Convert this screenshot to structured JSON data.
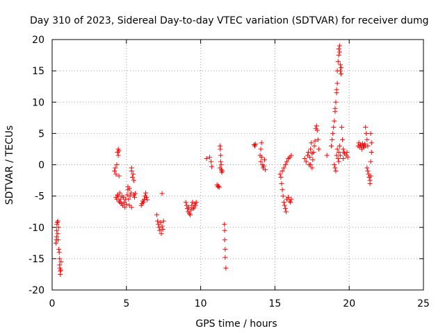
{
  "chart_data": {
    "type": "scatter",
    "title": "Day 310 of 2023, Sidereal Day-to-day VTEC variation (SDTVAR) for receiver dumg",
    "xlabel": "GPS time / hours",
    "ylabel": "SDTVAR / TECUs",
    "xlim": [
      0,
      25
    ],
    "ylim": [
      -20,
      20
    ],
    "xticks": [
      0,
      5,
      10,
      15,
      20,
      25
    ],
    "yticks": [
      -20,
      -15,
      -10,
      -5,
      0,
      5,
      10,
      15,
      20
    ],
    "xtick_labels": [
      "0",
      "5",
      "10",
      "15",
      "20",
      "25"
    ],
    "ytick_labels": [
      "-20",
      "-15",
      "-10",
      "-5",
      "0",
      "5",
      "10",
      "15",
      "20"
    ],
    "grid": true,
    "marker": "+",
    "marker_color": "#ff0000",
    "series": [
      {
        "name": "SDTVAR",
        "points": [
          [
            0.25,
            -12.5
          ],
          [
            0.28,
            -12.0
          ],
          [
            0.3,
            -11.5
          ],
          [
            0.3,
            -10.5
          ],
          [
            0.32,
            -9.5
          ],
          [
            0.35,
            -9.2
          ],
          [
            0.38,
            -9.0
          ],
          [
            0.38,
            -11.0
          ],
          [
            0.4,
            -12.0
          ],
          [
            0.42,
            -10.0
          ],
          [
            0.45,
            -13.5
          ],
          [
            0.48,
            -14.0
          ],
          [
            0.5,
            -15.0
          ],
          [
            0.5,
            -16.0
          ],
          [
            0.52,
            -16.5
          ],
          [
            0.55,
            -17.0
          ],
          [
            0.55,
            -17.5
          ],
          [
            0.58,
            -16.8
          ],
          [
            0.6,
            -15.5
          ],
          [
            4.2,
            -1.0
          ],
          [
            4.25,
            -0.5
          ],
          [
            4.3,
            -1.5
          ],
          [
            4.35,
            0.0
          ],
          [
            4.4,
            2.0
          ],
          [
            4.45,
            2.5
          ],
          [
            4.45,
            1.5
          ],
          [
            4.5,
            2.2
          ],
          [
            4.5,
            -1.8
          ],
          [
            4.55,
            -4.5
          ],
          [
            4.3,
            -5.2
          ],
          [
            4.35,
            -5.5
          ],
          [
            4.4,
            -4.8
          ],
          [
            4.45,
            -5.0
          ],
          [
            4.5,
            -5.8
          ],
          [
            4.55,
            -6.0
          ],
          [
            4.6,
            -5.5
          ],
          [
            4.65,
            -6.2
          ],
          [
            4.7,
            -5.0
          ],
          [
            4.75,
            -6.5
          ],
          [
            4.8,
            -5.2
          ],
          [
            4.85,
            -6.0
          ],
          [
            4.9,
            -6.8
          ],
          [
            4.95,
            -5.5
          ],
          [
            5.0,
            -6.3
          ],
          [
            5.05,
            -4.8
          ],
          [
            5.1,
            -4.0
          ],
          [
            5.1,
            -3.5
          ],
          [
            5.15,
            -5.5
          ],
          [
            5.2,
            -6.5
          ],
          [
            5.25,
            -5.0
          ],
          [
            5.3,
            -4.5
          ],
          [
            5.35,
            -0.5
          ],
          [
            5.35,
            -1.0
          ],
          [
            5.4,
            -2.0
          ],
          [
            5.45,
            -1.5
          ],
          [
            5.5,
            -2.5
          ],
          [
            5.5,
            -4.8
          ],
          [
            5.55,
            -5.2
          ],
          [
            5.6,
            -4.6
          ],
          [
            5.35,
            -6.8
          ],
          [
            5.2,
            -3.8
          ],
          [
            6.0,
            -6.5
          ],
          [
            6.05,
            -6.2
          ],
          [
            6.1,
            -5.8
          ],
          [
            6.15,
            -6.0
          ],
          [
            6.2,
            -5.5
          ],
          [
            6.25,
            -5.0
          ],
          [
            6.3,
            -4.5
          ],
          [
            6.35,
            -5.2
          ],
          [
            6.4,
            -5.6
          ],
          [
            7.05,
            -8.0
          ],
          [
            7.1,
            -9.0
          ],
          [
            7.15,
            -9.5
          ],
          [
            7.2,
            -10.0
          ],
          [
            7.25,
            -10.5
          ],
          [
            7.3,
            -9.2
          ],
          [
            7.35,
            -11.0
          ],
          [
            7.4,
            -9.8
          ],
          [
            7.45,
            -10.3
          ],
          [
            7.5,
            -9.0
          ],
          [
            7.4,
            -4.6
          ],
          [
            9.0,
            -6.0
          ],
          [
            9.05,
            -6.5
          ],
          [
            9.1,
            -7.0
          ],
          [
            9.15,
            -7.5
          ],
          [
            9.2,
            -6.8
          ],
          [
            9.25,
            -7.8
          ],
          [
            9.3,
            -8.0
          ],
          [
            9.35,
            -7.2
          ],
          [
            9.4,
            -6.5
          ],
          [
            9.45,
            -6.0
          ],
          [
            9.5,
            -7.0
          ],
          [
            9.55,
            -6.8
          ],
          [
            9.6,
            -6.2
          ],
          [
            9.65,
            -6.5
          ],
          [
            9.7,
            -6.0
          ],
          [
            10.4,
            1.0
          ],
          [
            10.6,
            1.2
          ],
          [
            10.7,
            0.5
          ],
          [
            10.75,
            -0.3
          ],
          [
            11.1,
            -3.2
          ],
          [
            11.15,
            -3.5
          ],
          [
            11.2,
            -3.4
          ],
          [
            11.25,
            -3.6
          ],
          [
            11.3,
            3.0
          ],
          [
            11.32,
            2.5
          ],
          [
            11.35,
            1.5
          ],
          [
            11.35,
            0.5
          ],
          [
            11.38,
            0.0
          ],
          [
            11.4,
            -0.8
          ],
          [
            11.42,
            -1.2
          ],
          [
            11.45,
            -1.0
          ],
          [
            11.3,
            -0.5
          ],
          [
            11.6,
            -9.5
          ],
          [
            11.62,
            -10.5
          ],
          [
            11.62,
            -12.0
          ],
          [
            11.65,
            -13.5
          ],
          [
            11.65,
            -14.8
          ],
          [
            11.7,
            -16.5
          ],
          [
            13.6,
            3.2
          ],
          [
            13.65,
            3.0
          ],
          [
            13.7,
            3.3
          ],
          [
            14.0,
            1.5
          ],
          [
            14.05,
            0.5
          ],
          [
            14.1,
            1.2
          ],
          [
            14.15,
            0.0
          ],
          [
            14.2,
            -0.5
          ],
          [
            14.25,
            -0.2
          ],
          [
            14.3,
            0.8
          ],
          [
            14.35,
            -0.8
          ],
          [
            14.05,
            2.5
          ],
          [
            14.1,
            3.5
          ],
          [
            15.35,
            -1.5
          ],
          [
            15.4,
            -2.0
          ],
          [
            15.45,
            -3.0
          ],
          [
            15.5,
            -4.0
          ],
          [
            15.55,
            -5.0
          ],
          [
            15.6,
            -6.0
          ],
          [
            15.65,
            -6.5
          ],
          [
            15.7,
            -7.0
          ],
          [
            15.75,
            -7.5
          ],
          [
            15.5,
            -1.0
          ],
          [
            15.6,
            -0.5
          ],
          [
            15.7,
            0.0
          ],
          [
            15.8,
            0.5
          ],
          [
            15.9,
            1.0
          ],
          [
            16.0,
            1.2
          ],
          [
            16.1,
            1.5
          ],
          [
            15.8,
            -5.5
          ],
          [
            15.9,
            -5.2
          ],
          [
            16.0,
            -5.8
          ],
          [
            16.05,
            -6.0
          ],
          [
            16.1,
            -5.5
          ],
          [
            17.0,
            1.0
          ],
          [
            17.1,
            0.5
          ],
          [
            17.2,
            1.5
          ],
          [
            17.25,
            2.0
          ],
          [
            17.3,
            0.0
          ],
          [
            17.35,
            1.2
          ],
          [
            17.4,
            2.5
          ],
          [
            17.45,
            3.5
          ],
          [
            17.5,
            1.8
          ],
          [
            17.55,
            0.8
          ],
          [
            17.6,
            2.0
          ],
          [
            17.65,
            3.0
          ],
          [
            17.7,
            3.8
          ],
          [
            17.75,
            5.8
          ],
          [
            17.8,
            6.2
          ],
          [
            17.85,
            5.5
          ],
          [
            17.9,
            4.0
          ],
          [
            17.95,
            2.5
          ],
          [
            17.4,
            0.0
          ],
          [
            17.5,
            -0.5
          ],
          [
            18.5,
            1.5
          ],
          [
            18.8,
            3.0
          ],
          [
            18.85,
            4.0
          ],
          [
            18.9,
            5.0
          ],
          [
            18.95,
            6.0
          ],
          [
            19.0,
            7.0
          ],
          [
            19.05,
            8.5
          ],
          [
            19.05,
            9.0
          ],
          [
            19.1,
            10.0
          ],
          [
            19.15,
            11.5
          ],
          [
            19.15,
            12.0
          ],
          [
            19.2,
            13.0
          ],
          [
            19.2,
            15.0
          ],
          [
            19.25,
            16.5
          ],
          [
            19.3,
            17.5
          ],
          [
            19.3,
            18.5
          ],
          [
            19.35,
            19.0
          ],
          [
            19.35,
            18.0
          ],
          [
            19.4,
            16.0
          ],
          [
            19.4,
            15.0
          ],
          [
            19.45,
            15.5
          ],
          [
            19.45,
            14.5
          ],
          [
            19.0,
            0.0
          ],
          [
            19.05,
            -0.5
          ],
          [
            19.1,
            -1.0
          ],
          [
            19.15,
            1.5
          ],
          [
            19.2,
            2.5
          ],
          [
            19.25,
            1.0
          ],
          [
            19.3,
            0.5
          ],
          [
            19.3,
            2.0
          ],
          [
            19.35,
            3.0
          ],
          [
            19.4,
            1.5
          ],
          [
            19.5,
            6.0
          ],
          [
            19.55,
            4.0
          ],
          [
            19.6,
            2.5
          ],
          [
            19.6,
            1.0
          ],
          [
            19.65,
            2.0
          ],
          [
            19.7,
            1.8
          ],
          [
            19.8,
            1.5
          ],
          [
            19.85,
            2.0
          ],
          [
            19.9,
            1.2
          ],
          [
            20.6,
            3.0
          ],
          [
            20.65,
            3.5
          ],
          [
            20.7,
            2.8
          ],
          [
            20.75,
            3.2
          ],
          [
            20.8,
            3.0
          ],
          [
            20.85,
            2.5
          ],
          [
            20.9,
            3.4
          ],
          [
            20.95,
            3.0
          ],
          [
            21.0,
            2.8
          ],
          [
            21.05,
            3.3
          ],
          [
            21.1,
            6.0
          ],
          [
            21.15,
            5.0
          ],
          [
            21.1,
            3.0
          ],
          [
            21.2,
            4.0
          ],
          [
            21.25,
            3.0
          ],
          [
            21.2,
            -0.5
          ],
          [
            21.25,
            -1.0
          ],
          [
            21.3,
            -1.5
          ],
          [
            21.35,
            -2.0
          ],
          [
            21.4,
            -2.5
          ],
          [
            21.4,
            -3.0
          ],
          [
            21.45,
            -1.8
          ],
          [
            21.45,
            0.5
          ],
          [
            21.5,
            2.0
          ],
          [
            21.5,
            3.5
          ],
          [
            21.45,
            5.0
          ]
        ]
      }
    ]
  }
}
